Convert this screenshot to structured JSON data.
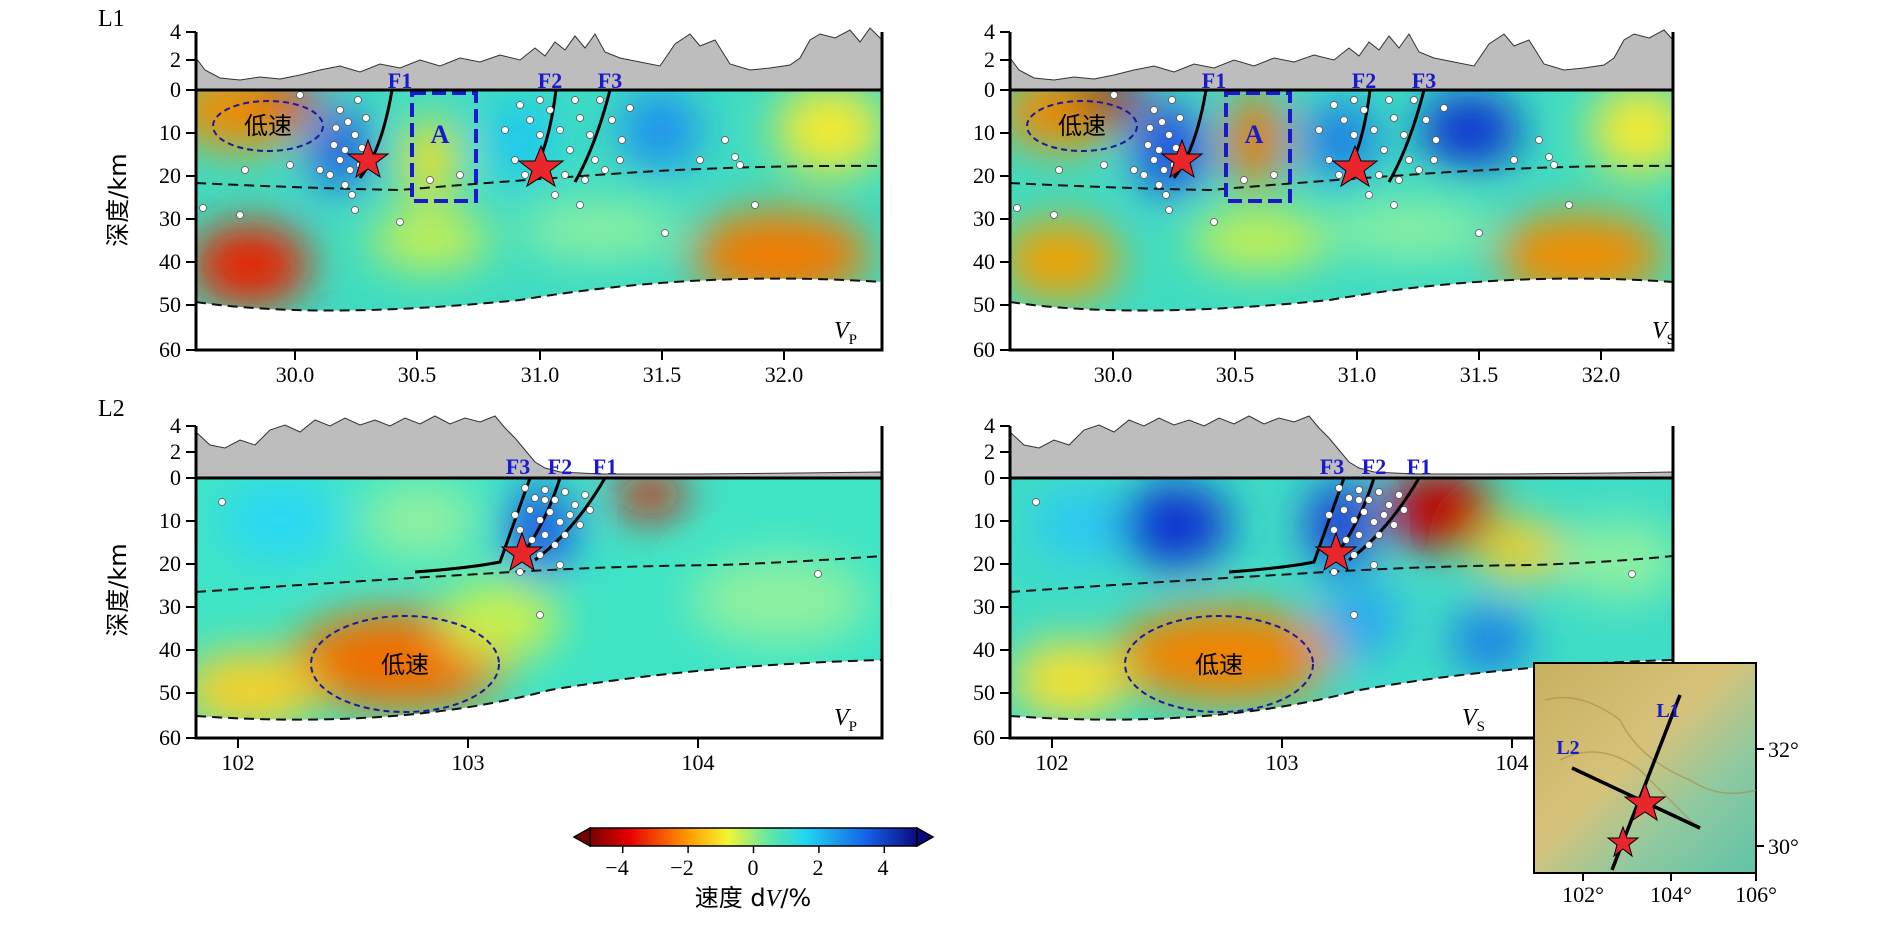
{
  "row_labels": {
    "row1": "L1",
    "row2": "L2"
  },
  "ylabel": "深度/km",
  "surface_ticks": [
    "4",
    "2",
    "0"
  ],
  "depth_ticks": [
    "10",
    "20",
    "30",
    "40",
    "50",
    "60"
  ],
  "panels": {
    "l1vp": {
      "comp": "V",
      "sub": "P",
      "faults": [
        "F1",
        "F2",
        "F3"
      ],
      "anomaly_label": "低速",
      "box_label": "A"
    },
    "l1vs": {
      "comp": "V",
      "sub": "S",
      "faults": [
        "F1",
        "F2",
        "F3"
      ],
      "anomaly_label": "低速",
      "box_label": "A"
    },
    "l2vp": {
      "comp": "V",
      "sub": "P",
      "faults": [
        "F3",
        "F2",
        "F1"
      ],
      "anomaly_label": "低速"
    },
    "l2vs": {
      "comp": "V",
      "sub": "S",
      "faults": [
        "F3",
        "F2",
        "F1"
      ],
      "anomaly_label": "低速"
    }
  },
  "x_ticks_l1": [
    "30.0",
    "30.5",
    "31.0",
    "31.5",
    "32.0"
  ],
  "x_ticks_l2": [
    "102",
    "103",
    "104"
  ],
  "colorbar": {
    "ticks": [
      "−4",
      "−2",
      "0",
      "2",
      "4"
    ],
    "label_prefix": "速度 d",
    "label_italic": "V",
    "label_suffix": "/%",
    "range": [
      -5,
      5
    ]
  },
  "inset": {
    "profile_labels": [
      "L1",
      "L2"
    ],
    "lat_ticks": [
      "32°",
      "30°"
    ],
    "lon_ticks": [
      "102°",
      "104°",
      "106°"
    ]
  },
  "colors": {
    "fault_label": "#1a1acc",
    "ellipse": "#1a1a9e",
    "star": "#e8262b",
    "topography": "#bdbdbd"
  }
}
